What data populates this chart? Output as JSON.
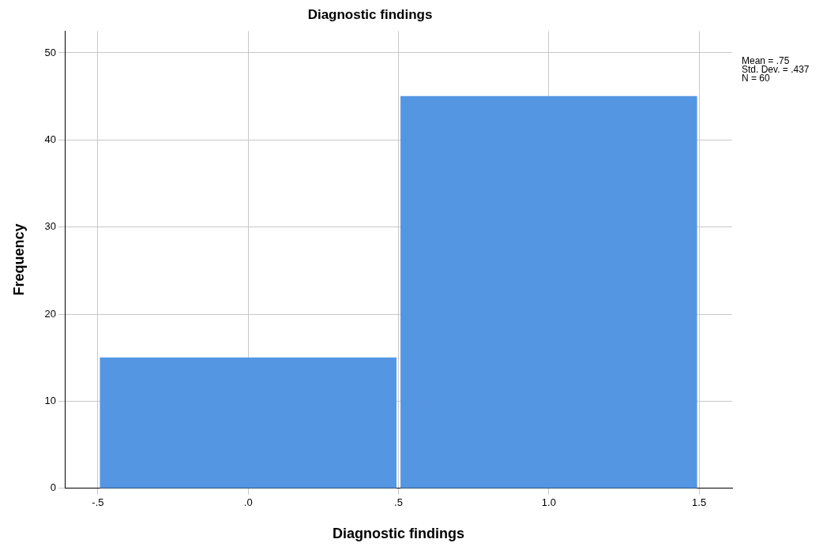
{
  "chart_data": {
    "type": "histogram",
    "title": "Diagnostic findings",
    "xlabel": "Diagnostic findings",
    "ylabel": "Frequency",
    "bins": [
      -0.5,
      0.5,
      1.5
    ],
    "values": [
      15,
      45
    ],
    "color": "#5596e3",
    "xlim": [
      -0.61,
      1.61
    ],
    "xticks": [
      {
        "value": -0.5,
        "label": "-.5"
      },
      {
        "value": 0,
        "label": ".0"
      },
      {
        "value": 0.5,
        "label": ".5"
      },
      {
        "value": 1,
        "label": "1.0"
      },
      {
        "value": 1.5,
        "label": "1.5"
      }
    ],
    "ylim": [
      0,
      52.5
    ],
    "yticks": [
      0,
      10,
      20,
      30,
      40,
      50
    ],
    "grid": true,
    "legend": false,
    "annotations": [
      "Mean = .75",
      "Std. Dev. = .437",
      "N = 60"
    ]
  }
}
